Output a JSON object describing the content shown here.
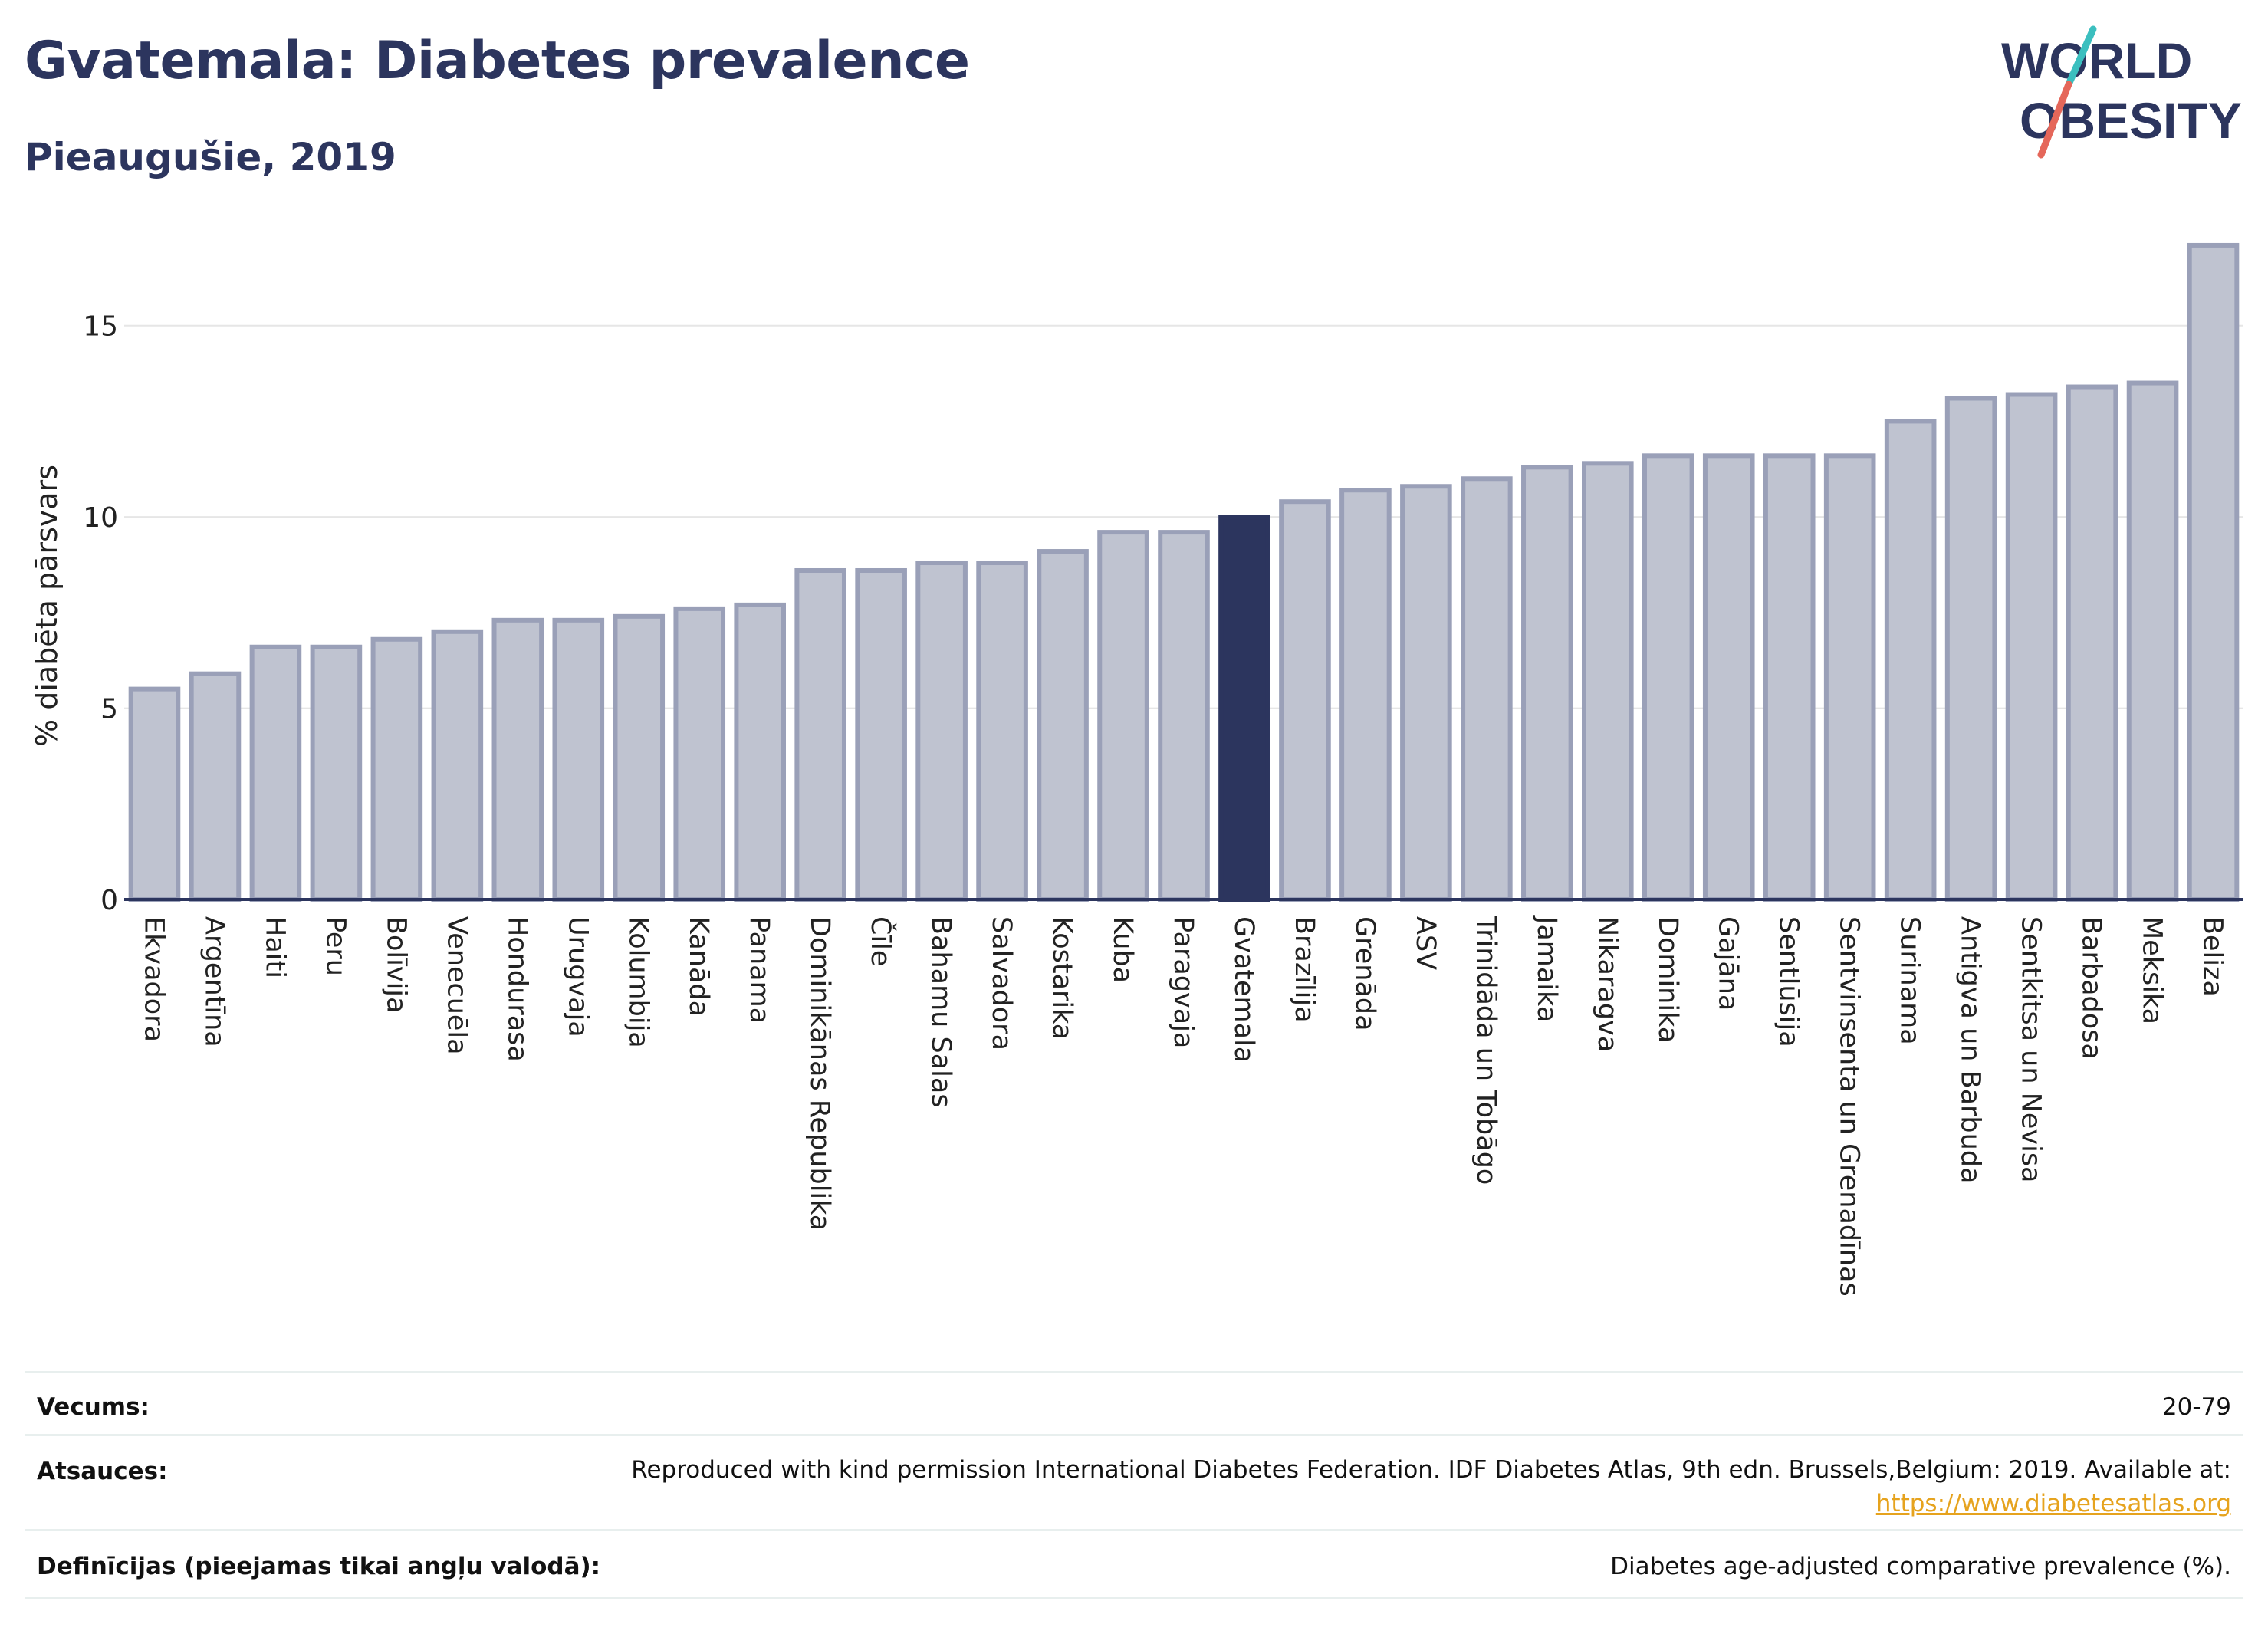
{
  "header": {
    "title": "Gvatemala: Diabetes prevalence",
    "subtitle": "Pieaugušie, 2019"
  },
  "logo": {
    "line1": "WORLD",
    "line2": "OBESITY"
  },
  "colors": {
    "bar": "#bfc3d0",
    "bar_border": "#9aa0b8",
    "highlight": "#2c355e",
    "grid": "#e6e6e6",
    "text": "#2c355e",
    "link": "#e6a31e"
  },
  "chart_data": {
    "type": "bar",
    "ylabel": "% diabēta pārsvars",
    "ylim": [
      0,
      17.5
    ],
    "yticks": [
      0,
      5,
      10,
      15
    ],
    "highlight": "Gvatemala",
    "categories": [
      "Ekvadora",
      "Argentīna",
      "Haiti",
      "Peru",
      "Bolīvija",
      "Venecuēla",
      "Hondurasa",
      "Urugvaja",
      "Kolumbija",
      "Kanāda",
      "Panama",
      "Dominikānas Republika",
      "Čīle",
      "Bahamu Salas",
      "Salvadora",
      "Kostarika",
      "Kuba",
      "Paragvaja",
      "Gvatemala",
      "Brazīlija",
      "Grenāda",
      "ASV",
      "Trinidāda un Tobāgo",
      "Jamaika",
      "Nikaragva",
      "Dominika",
      "Gajāna",
      "Sentlūsija",
      "Sentvinsenta un Grenadīnas",
      "Surinama",
      "Antigva un Barbuda",
      "Sentkitsa un Nevisa",
      "Barbadosa",
      "Meksika",
      "Beliza"
    ],
    "values": [
      5.5,
      5.9,
      6.6,
      6.6,
      6.8,
      7.0,
      7.3,
      7.3,
      7.4,
      7.6,
      7.7,
      8.6,
      8.6,
      8.8,
      8.8,
      9.1,
      9.6,
      9.6,
      10.0,
      10.4,
      10.7,
      10.8,
      11.0,
      11.3,
      11.4,
      11.6,
      11.6,
      11.6,
      11.6,
      12.5,
      13.1,
      13.2,
      13.4,
      13.5,
      17.1
    ]
  },
  "meta": {
    "age_label": "Vecums:",
    "age_value": "20-79",
    "sources_label": "Atsauces:",
    "sources_text": "Reproduced with kind permission International Diabetes Federation. IDF Diabetes Atlas, 9th edn. Brussels,Belgium: 2019. Available at:",
    "sources_link": "https://www.diabetesatlas.org",
    "definitions_label": "Definīcijas (pieejamas tikai angļu valodā):",
    "definitions_value": "Diabetes age-adjusted comparative prevalence (%)."
  }
}
